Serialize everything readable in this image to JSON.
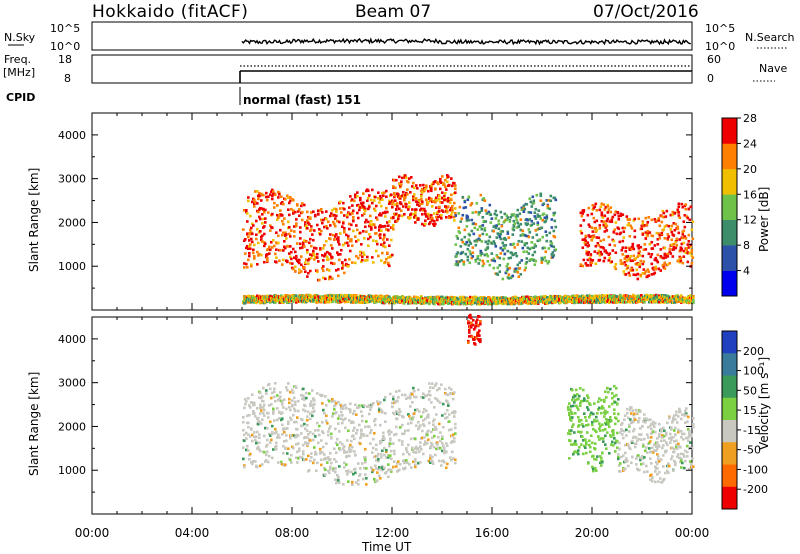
{
  "header": {
    "station": "Hokkaido (fitACF)",
    "beam": "Beam 07",
    "date": "07/Oct/2016"
  },
  "summary": {
    "nsky_label": "N.Sky",
    "nsky_ticks": [
      "10^5",
      "10^0"
    ],
    "nsearch_label": "N.Search",
    "freq_label_1": "Freq.",
    "freq_label_2": "[MHz]",
    "freq_ticks": [
      "18",
      "8"
    ],
    "nave_label": "Nave",
    "nave_ticks": [
      "60",
      "0"
    ],
    "cpid_label": "CPID",
    "cpid_value": "normal (fast) 151"
  },
  "chart_data": [
    {
      "type": "heatmap",
      "panel": "power",
      "ylabel": "Slant Range [km]",
      "xlabel": "",
      "ylim": [
        0,
        4500
      ],
      "y_ticks": [
        "1000",
        "2000",
        "3000",
        "4000"
      ],
      "colorbar_label": "Power [dB]",
      "colorbar_ticks": [
        "4",
        "8",
        "12",
        "16",
        "20",
        "24",
        "28"
      ],
      "colors": [
        "#0000ee",
        "#2b52a8",
        "#3d8c6a",
        "#6ec24a",
        "#f0c000",
        "#ff7f00",
        "#ee0000"
      ],
      "echo_regions": [
        {
          "start_ut": 6.0,
          "end_ut": 12.0,
          "range_km": [
            900,
            2600
          ],
          "level": "high"
        },
        {
          "start_ut": 12.0,
          "end_ut": 14.5,
          "range_km": [
            2000,
            3000
          ],
          "level": "high"
        },
        {
          "start_ut": 14.5,
          "end_ut": 18.5,
          "range_km": [
            900,
            2500
          ],
          "level": "low"
        },
        {
          "start_ut": 19.5,
          "end_ut": 24.0,
          "range_km": [
            900,
            2300
          ],
          "level": "high"
        },
        {
          "start_ut": 6.0,
          "end_ut": 24.0,
          "range_km": [
            180,
            350
          ],
          "level": "mixed"
        }
      ]
    },
    {
      "type": "heatmap",
      "panel": "velocity",
      "ylabel": "Slant Range [km]",
      "xlabel": "Time UT",
      "ylim": [
        0,
        4500
      ],
      "y_ticks": [
        "1000",
        "2000",
        "3000",
        "4000"
      ],
      "colorbar_label": "Velocity [m s⁻¹]",
      "colorbar_ticks": [
        "200",
        "100",
        "50",
        "15",
        "-15",
        "-50",
        "-100",
        "-200"
      ],
      "colors": [
        "#2040c0",
        "#3a7a9a",
        "#3a9a5a",
        "#7ad040",
        "#c8c8c0",
        "#f0a020",
        "#ff6a00",
        "#ee0000"
      ],
      "x_ticks": [
        "00:00",
        "04:00",
        "08:00",
        "12:00",
        "16:00",
        "20:00",
        "00:00"
      ],
      "echo_regions": [
        {
          "start_ut": 6.0,
          "end_ut": 14.5,
          "range_km": [
            900,
            2800
          ],
          "level": "near-zero"
        },
        {
          "start_ut": 19.0,
          "end_ut": 21.0,
          "range_km": [
            1200,
            2800
          ],
          "level": "positive"
        },
        {
          "start_ut": 15.0,
          "end_ut": 15.5,
          "range_km": [
            3900,
            4500
          ],
          "level": "negative"
        },
        {
          "start_ut": 21.0,
          "end_ut": 24.0,
          "range_km": [
            900,
            2300
          ],
          "level": "near-zero"
        }
      ]
    }
  ]
}
